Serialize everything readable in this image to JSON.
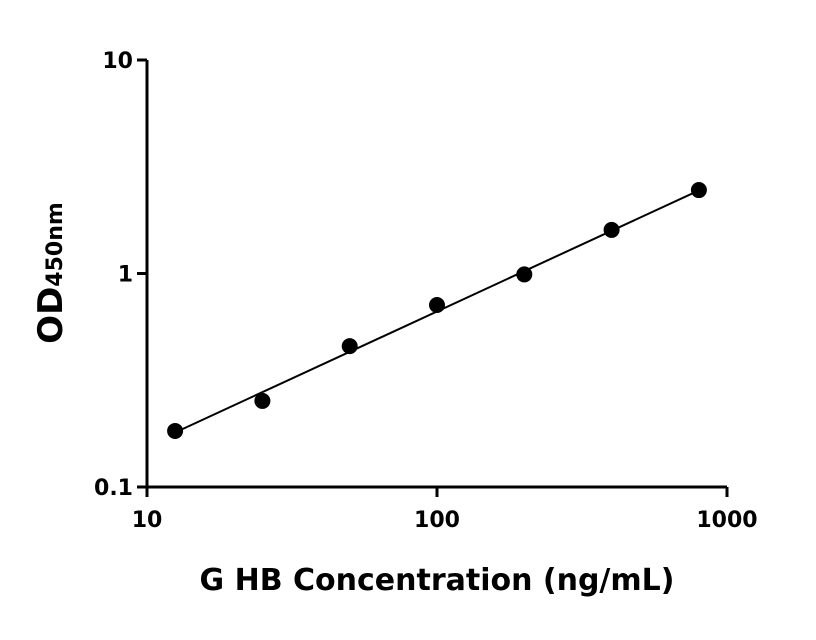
{
  "chart_data": {
    "type": "scatter",
    "x_label": "G HB Concentration (ng/mL)",
    "y_label": "OD",
    "y_label_subscript": "450nm",
    "x": [
      12.5,
      25,
      50,
      100,
      200,
      400,
      800
    ],
    "values": [
      0.183,
      0.253,
      0.457,
      0.712,
      0.99,
      1.6,
      2.46
    ],
    "color": "#000000",
    "fit": {
      "x": [
        12.5,
        800
      ],
      "values": [
        0.18,
        2.45
      ]
    },
    "x_log": true,
    "y_log": true,
    "xlim": [
      10,
      1000
    ],
    "ylim": [
      0.1,
      10
    ],
    "xticks": [
      10,
      100,
      1000
    ],
    "yticks": [
      0.1,
      1,
      10
    ]
  }
}
